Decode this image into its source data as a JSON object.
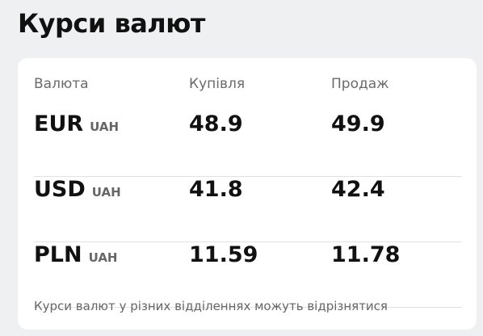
{
  "header": {
    "title": "Курси валют"
  },
  "table": {
    "columns": [
      "Валюта",
      "Купівля",
      "Продаж"
    ],
    "rows": [
      {
        "currency": "EUR",
        "base": "UAH",
        "buy": "48.9",
        "sell": "49.9"
      },
      {
        "currency": "USD",
        "base": "UAH",
        "buy": "41.8",
        "sell": "42.4"
      },
      {
        "currency": "PLN",
        "base": "UAH",
        "buy": "11.59",
        "sell": "11.78"
      }
    ]
  },
  "footnote": "Курси валют у різних відділеннях можуть відрізнятися"
}
